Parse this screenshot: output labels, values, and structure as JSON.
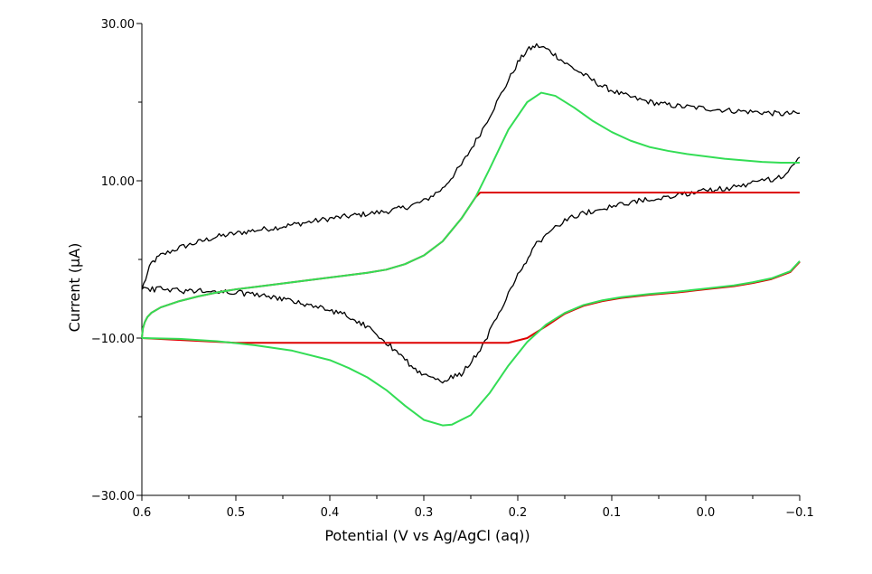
{
  "chart_data": {
    "type": "line",
    "title": "",
    "xlabel": "Potential (V vs Ag/AgCl (aq))",
    "ylabel": "Current (µA)",
    "xlim": [
      0.6,
      -0.1
    ],
    "ylim": [
      -30,
      30
    ],
    "x_axis_reversed": true,
    "x_ticks": [
      0.6,
      0.5,
      0.4,
      0.3,
      0.2,
      0.1,
      0.0,
      -0.1
    ],
    "x_tick_labels": [
      "0.6",
      "0.5",
      "0.4",
      "0.3",
      "0.2",
      "0.1",
      "0.0",
      "−0.1"
    ],
    "y_major_ticks": [
      30,
      10,
      -10,
      -30
    ],
    "y_tick_labels": [
      "30.00",
      "10.00",
      "−10.00",
      "−30.00"
    ],
    "y_minor_ticks": [
      20,
      0,
      -20
    ],
    "grid": false,
    "legend": "none",
    "series": [
      {
        "color": "#000000",
        "noisy": true,
        "branches": [
          {
            "points": [
              [
                0.6,
                -3.8
              ],
              [
                0.59,
                -0.5
              ],
              [
                0.58,
                0.5
              ],
              [
                0.56,
                1.5
              ],
              [
                0.54,
                2.2
              ],
              [
                0.52,
                2.9
              ],
              [
                0.5,
                3.3
              ],
              [
                0.48,
                3.7
              ],
              [
                0.46,
                4.0
              ],
              [
                0.44,
                4.4
              ],
              [
                0.42,
                4.8
              ],
              [
                0.4,
                5.2
              ],
              [
                0.38,
                5.5
              ],
              [
                0.36,
                5.8
              ],
              [
                0.34,
                6.1
              ],
              [
                0.32,
                6.6
              ],
              [
                0.3,
                7.4
              ],
              [
                0.28,
                9.0
              ],
              [
                0.26,
                12.0
              ],
              [
                0.24,
                16.0
              ],
              [
                0.22,
                20.5
              ],
              [
                0.2,
                25.0
              ],
              [
                0.19,
                26.6
              ],
              [
                0.18,
                27.2
              ],
              [
                0.17,
                26.8
              ],
              [
                0.16,
                26.0
              ],
              [
                0.15,
                25.0
              ],
              [
                0.13,
                23.5
              ],
              [
                0.11,
                22.0
              ],
              [
                0.09,
                21.0
              ],
              [
                0.07,
                20.3
              ],
              [
                0.05,
                19.8
              ],
              [
                0.03,
                19.5
              ],
              [
                0.01,
                19.3
              ],
              [
                -0.01,
                19.1
              ],
              [
                -0.03,
                18.9
              ],
              [
                -0.06,
                18.7
              ],
              [
                -0.08,
                18.5
              ],
              [
                -0.1,
                18.6
              ]
            ]
          },
          {
            "points": [
              [
                -0.1,
                13.0
              ],
              [
                -0.09,
                11.5
              ],
              [
                -0.08,
                10.5
              ],
              [
                -0.06,
                9.9
              ],
              [
                -0.04,
                9.4
              ],
              [
                -0.02,
                9.0
              ],
              [
                0.0,
                8.7
              ],
              [
                0.02,
                8.4
              ],
              [
                0.04,
                8.0
              ],
              [
                0.06,
                7.7
              ],
              [
                0.08,
                7.3
              ],
              [
                0.1,
                6.8
              ],
              [
                0.12,
                6.2
              ],
              [
                0.14,
                5.5
              ],
              [
                0.16,
                4.2
              ],
              [
                0.18,
                2.0
              ],
              [
                0.2,
                -2.0
              ],
              [
                0.22,
                -7.0
              ],
              [
                0.24,
                -11.5
              ],
              [
                0.26,
                -14.5
              ],
              [
                0.28,
                -15.5
              ],
              [
                0.3,
                -14.8
              ],
              [
                0.32,
                -12.8
              ],
              [
                0.34,
                -10.5
              ],
              [
                0.36,
                -8.5
              ],
              [
                0.38,
                -7.2
              ],
              [
                0.4,
                -6.5
              ],
              [
                0.42,
                -5.8
              ],
              [
                0.44,
                -5.3
              ],
              [
                0.46,
                -4.8
              ],
              [
                0.48,
                -4.5
              ],
              [
                0.5,
                -4.2
              ],
              [
                0.52,
                -4.1
              ],
              [
                0.54,
                -4.0
              ],
              [
                0.56,
                -4.0
              ],
              [
                0.58,
                -3.8
              ],
              [
                0.6,
                -3.8
              ]
            ]
          }
        ]
      },
      {
        "color": "#dd0000",
        "noisy": false,
        "branches": [
          {
            "points": [
              [
                0.6,
                -10.0
              ],
              [
                0.599,
                -8.8
              ],
              [
                0.597,
                -8.0
              ],
              [
                0.594,
                -7.3
              ],
              [
                0.59,
                -6.8
              ],
              [
                0.58,
                -6.1
              ],
              [
                0.56,
                -5.3
              ],
              [
                0.54,
                -4.7
              ],
              [
                0.52,
                -4.2
              ],
              [
                0.5,
                -3.8
              ],
              [
                0.48,
                -3.5
              ],
              [
                0.46,
                -3.2
              ],
              [
                0.44,
                -2.9
              ],
              [
                0.42,
                -2.6
              ],
              [
                0.4,
                -2.3
              ],
              [
                0.38,
                -2.0
              ],
              [
                0.36,
                -1.7
              ],
              [
                0.34,
                -1.3
              ],
              [
                0.32,
                -0.6
              ],
              [
                0.3,
                0.5
              ],
              [
                0.28,
                2.3
              ],
              [
                0.26,
                5.2
              ],
              [
                0.245,
                7.9
              ],
              [
                0.24,
                8.5
              ],
              [
                0.18,
                8.5
              ],
              [
                0.1,
                8.5
              ],
              [
                0.0,
                8.5
              ],
              [
                -0.1,
                8.5
              ]
            ]
          },
          {
            "points": [
              [
                -0.1,
                -0.3
              ],
              [
                -0.09,
                -1.6
              ],
              [
                -0.07,
                -2.5
              ],
              [
                -0.05,
                -3.0
              ],
              [
                -0.03,
                -3.4
              ],
              [
                0.0,
                -3.8
              ],
              [
                0.03,
                -4.2
              ],
              [
                0.06,
                -4.5
              ],
              [
                0.09,
                -4.9
              ],
              [
                0.11,
                -5.3
              ],
              [
                0.13,
                -5.9
              ],
              [
                0.15,
                -6.9
              ],
              [
                0.17,
                -8.5
              ],
              [
                0.19,
                -10.0
              ],
              [
                0.21,
                -10.6
              ],
              [
                0.22,
                -10.6
              ],
              [
                0.3,
                -10.6
              ],
              [
                0.4,
                -10.6
              ],
              [
                0.5,
                -10.6
              ],
              [
                0.6,
                -10.0
              ]
            ]
          }
        ]
      },
      {
        "color": "#33dd55",
        "noisy": false,
        "branches": [
          {
            "points": [
              [
                0.6,
                -10.0
              ],
              [
                0.599,
                -8.8
              ],
              [
                0.597,
                -8.0
              ],
              [
                0.594,
                -7.3
              ],
              [
                0.59,
                -6.8
              ],
              [
                0.58,
                -6.1
              ],
              [
                0.56,
                -5.3
              ],
              [
                0.54,
                -4.7
              ],
              [
                0.52,
                -4.2
              ],
              [
                0.5,
                -3.8
              ],
              [
                0.48,
                -3.5
              ],
              [
                0.46,
                -3.2
              ],
              [
                0.44,
                -2.9
              ],
              [
                0.42,
                -2.6
              ],
              [
                0.4,
                -2.3
              ],
              [
                0.38,
                -2.0
              ],
              [
                0.36,
                -1.7
              ],
              [
                0.34,
                -1.3
              ],
              [
                0.32,
                -0.6
              ],
              [
                0.3,
                0.5
              ],
              [
                0.28,
                2.3
              ],
              [
                0.26,
                5.2
              ],
              [
                0.245,
                7.9
              ],
              [
                0.23,
                11.5
              ],
              [
                0.21,
                16.5
              ],
              [
                0.19,
                20.0
              ],
              [
                0.175,
                21.2
              ],
              [
                0.16,
                20.8
              ],
              [
                0.14,
                19.3
              ],
              [
                0.12,
                17.6
              ],
              [
                0.1,
                16.2
              ],
              [
                0.08,
                15.1
              ],
              [
                0.06,
                14.3
              ],
              [
                0.04,
                13.8
              ],
              [
                0.02,
                13.4
              ],
              [
                0.0,
                13.1
              ],
              [
                -0.02,
                12.8
              ],
              [
                -0.04,
                12.6
              ],
              [
                -0.06,
                12.4
              ],
              [
                -0.08,
                12.3
              ],
              [
                -0.1,
                12.3
              ]
            ]
          },
          {
            "points": [
              [
                -0.1,
                -0.2
              ],
              [
                -0.09,
                -1.5
              ],
              [
                -0.07,
                -2.4
              ],
              [
                -0.05,
                -2.9
              ],
              [
                -0.03,
                -3.3
              ],
              [
                0.0,
                -3.7
              ],
              [
                0.03,
                -4.1
              ],
              [
                0.06,
                -4.4
              ],
              [
                0.09,
                -4.8
              ],
              [
                0.11,
                -5.2
              ],
              [
                0.13,
                -5.8
              ],
              [
                0.15,
                -6.8
              ],
              [
                0.17,
                -8.3
              ],
              [
                0.19,
                -10.5
              ],
              [
                0.21,
                -13.5
              ],
              [
                0.23,
                -17.0
              ],
              [
                0.25,
                -19.8
              ],
              [
                0.27,
                -21.0
              ],
              [
                0.28,
                -21.1
              ],
              [
                0.3,
                -20.4
              ],
              [
                0.32,
                -18.6
              ],
              [
                0.34,
                -16.6
              ],
              [
                0.36,
                -15.0
              ],
              [
                0.38,
                -13.8
              ],
              [
                0.4,
                -12.8
              ],
              [
                0.44,
                -11.6
              ],
              [
                0.48,
                -10.9
              ],
              [
                0.52,
                -10.4
              ],
              [
                0.56,
                -10.1
              ],
              [
                0.6,
                -10.0
              ]
            ]
          }
        ]
      }
    ]
  }
}
